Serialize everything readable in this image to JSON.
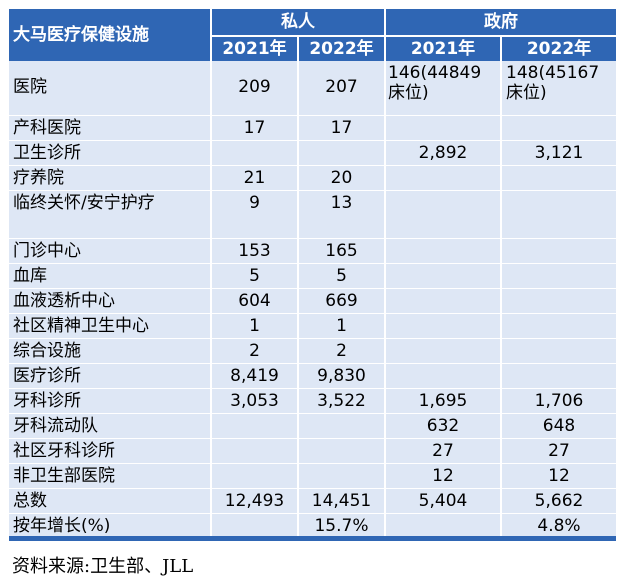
{
  "table": {
    "corner_label": "大马医疗保健设施",
    "groups": {
      "private": "私人",
      "government": "政府"
    },
    "years": [
      "2021年",
      "2022年",
      "2021年",
      "2022年"
    ],
    "rows": [
      {
        "label": "医院",
        "p2021": "209",
        "p2022": "207",
        "g2021_a": "146(44849",
        "g2021_b": "床位)",
        "g2022_a": "148(45167",
        "g2022_b": "床位)"
      },
      {
        "label": "产科医院",
        "p2021": "17",
        "p2022": "17",
        "g2021": "",
        "g2022": ""
      },
      {
        "label": "卫生诊所",
        "p2021": "",
        "p2022": "",
        "g2021": "2,892",
        "g2022": "3,121"
      },
      {
        "label": "疗养院",
        "p2021": "21",
        "p2022": "20",
        "g2021": "",
        "g2022": ""
      },
      {
        "label": "临终关怀/安宁护疗",
        "p2021": "9",
        "p2022": "13",
        "g2021": "",
        "g2022": ""
      },
      {
        "label": "门诊中心",
        "p2021": "153",
        "p2022": "165",
        "g2021": "",
        "g2022": ""
      },
      {
        "label": "血库",
        "p2021": "5",
        "p2022": "5",
        "g2021": "",
        "g2022": ""
      },
      {
        "label": "血液透析中心",
        "p2021": "604",
        "p2022": "669",
        "g2021": "",
        "g2022": ""
      },
      {
        "label": "社区精神卫生中心",
        "p2021": "1",
        "p2022": "1",
        "g2021": "",
        "g2022": ""
      },
      {
        "label": "综合设施",
        "p2021": "2",
        "p2022": "2",
        "g2021": "",
        "g2022": ""
      },
      {
        "label": "医疗诊所",
        "p2021": "8,419",
        "p2022": "9,830",
        "g2021": "",
        "g2022": ""
      },
      {
        "label": "牙科诊所",
        "p2021": "3,053",
        "p2022": "3,522",
        "g2021": "1,695",
        "g2022": "1,706"
      },
      {
        "label": "牙科流动队",
        "p2021": "",
        "p2022": "",
        "g2021": "632",
        "g2022": "648"
      },
      {
        "label": "社区牙科诊所",
        "p2021": "",
        "p2022": "",
        "g2021": "27",
        "g2022": "27"
      },
      {
        "label": "非卫生部医院",
        "p2021": "",
        "p2022": "",
        "g2021": "12",
        "g2022": "12"
      },
      {
        "label": "总数",
        "p2021": "12,493",
        "p2022": "14,451",
        "g2021": "5,404",
        "g2022": "5,662"
      },
      {
        "label": "按年增长(%)",
        "p2021": "",
        "p2022": "15.7%",
        "g2021": "",
        "g2022": "4.8%"
      }
    ]
  },
  "source": "资料来源:卫生部、JLL",
  "colors": {
    "header_bg": "#2f66b4",
    "row_bg": "#dee7f5",
    "header_text": "#ffffff"
  }
}
